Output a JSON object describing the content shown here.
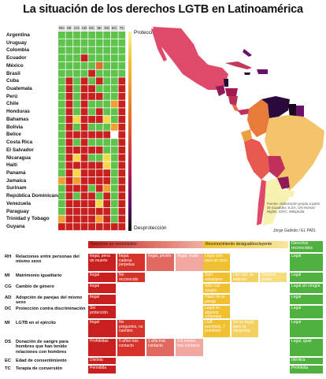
{
  "title": "La situación de los derechos LGTB en Latinoamérica",
  "heatmap": {
    "columns": [
      "RH",
      "MI",
      "CG",
      "AD",
      "DC",
      "MI",
      "DS",
      "EC",
      "TC"
    ],
    "countries": [
      "Argentina",
      "Uruguay",
      "Colombia",
      "Ecuador",
      "México",
      "Brasil",
      "Cuba",
      "Guatemala",
      "Perú",
      "Chile",
      "Honduras",
      "Bahamas",
      "Bolivia",
      "Belice",
      "Costa Rica",
      "El Salvador",
      "Nicaragua",
      "Haití",
      "Panamá",
      "Jamaica",
      "Surinam",
      "República Dominicana",
      "Venezuela",
      "Paraguay",
      "Trinidad y Tobago",
      "Guyana"
    ],
    "scale_top_label": "Protección",
    "scale_bottom_label": "Desprotección"
  },
  "chart_data": {
    "type": "heatmap",
    "title": "La situación de los derechos LGTB en Latinoamérica",
    "x": [
      "RH",
      "MI",
      "CG",
      "AD",
      "DC",
      "MI",
      "DS",
      "EC",
      "TC"
    ],
    "y": [
      "Argentina",
      "Uruguay",
      "Colombia",
      "Ecuador",
      "México",
      "Brasil",
      "Cuba",
      "Guatemala",
      "Perú",
      "Chile",
      "Honduras",
      "Bahamas",
      "Bolivia",
      "Belice",
      "Costa Rica",
      "El Salvador",
      "Nicaragua",
      "Haití",
      "Panamá",
      "Jamaica",
      "Surinam",
      "República Dominicana",
      "Venezuela",
      "Paraguay",
      "Trinidad y Tobago",
      "Guyana"
    ],
    "color_scale": {
      "G": "#5fc24a",
      "Y": "#f8d84a",
      "O": "#f0a030",
      "D": "#e06a30",
      "R": "#c8201e",
      "W": "#ffffff"
    },
    "values": [
      [
        "G",
        "G",
        "G",
        "G",
        "G",
        "G",
        "G",
        "G",
        "G"
      ],
      [
        "G",
        "G",
        "G",
        "G",
        "G",
        "G",
        "G",
        "G",
        "G"
      ],
      [
        "G",
        "G",
        "G",
        "G",
        "G",
        "G",
        "G",
        "G",
        "G"
      ],
      [
        "G",
        "G",
        "G",
        "R",
        "G",
        "G",
        "G",
        "G",
        "G"
      ],
      [
        "G",
        "G",
        "G",
        "G",
        "G",
        "D",
        "G",
        "G",
        "G"
      ],
      [
        "G",
        "G",
        "G",
        "G",
        "R",
        "G",
        "G",
        "G",
        "G"
      ],
      [
        "G",
        "R",
        "G",
        "R",
        "G",
        "R",
        "G",
        "G",
        "R"
      ],
      [
        "G",
        "R",
        "G",
        "R",
        "R",
        "G",
        "G",
        "G",
        "R"
      ],
      [
        "G",
        "R",
        "G",
        "R",
        "R",
        "R",
        "G",
        "G",
        "R"
      ],
      [
        "G",
        "R",
        "G",
        "R",
        "G",
        "G",
        "G",
        "O",
        "R"
      ],
      [
        "G",
        "R",
        "G",
        "R",
        "G",
        "R",
        "G",
        "G",
        "R"
      ],
      [
        "G",
        "R",
        "Y",
        "R",
        "R",
        "R",
        "Y",
        "G",
        "R"
      ],
      [
        "G",
        "R",
        "G",
        "R",
        "G",
        "G",
        "G",
        "O",
        "R"
      ],
      [
        "G",
        "R",
        "R",
        "R",
        "R",
        "R",
        "R",
        "W",
        "R"
      ],
      [
        "G",
        "R",
        "G",
        "R",
        "G",
        "G",
        "G",
        "G",
        "R"
      ],
      [
        "G",
        "R",
        "R",
        "R",
        "R",
        "R",
        "G",
        "G",
        "R"
      ],
      [
        "G",
        "R",
        "Y",
        "R",
        "G",
        "G",
        "Y",
        "G",
        "R"
      ],
      [
        "G",
        "R",
        "R",
        "R",
        "R",
        "R",
        "Y",
        "G",
        "R"
      ],
      [
        "G",
        "R",
        "Y",
        "R",
        "R",
        "R",
        "R",
        "G",
        "R"
      ],
      [
        "O",
        "R",
        "O",
        "R",
        "R",
        "R",
        "R",
        "G",
        "R"
      ],
      [
        "G",
        "R",
        "R",
        "R",
        "G",
        "R",
        "O",
        "G",
        "R"
      ],
      [
        "G",
        "R",
        "G",
        "R",
        "R",
        "G",
        "R",
        "G",
        "R"
      ],
      [
        "G",
        "R",
        "R",
        "R",
        "R",
        "Y",
        "R",
        "G",
        "R"
      ],
      [
        "G",
        "R",
        "R",
        "R",
        "R",
        "R",
        "R",
        "G",
        "R"
      ],
      [
        "O",
        "R",
        "R",
        "R",
        "R",
        "O",
        "R",
        "G",
        "R"
      ],
      [
        "R",
        "R",
        "R",
        "R",
        "R",
        "R",
        "R",
        "R",
        "R"
      ]
    ]
  },
  "map": {
    "note": "Fuente: elaboración propia a partir de Equaldex, ILGA, UN Human Rights, ICRC, Wikipedia.",
    "credit": "Jorge Galindo / EL PAÍS"
  },
  "legend": {
    "headers": {
      "no_reconocidos": "Derechos no reconocidos",
      "desigual": "Reconocimiento desigual/excluyente",
      "reconocidos": "Derechos reconocidos"
    },
    "rows": [
      {
        "code": "RH",
        "label": "Relaciones entre personas del mismo sexo",
        "no": [
          "Ilegal, pena de muerte",
          "Ilegal, cadena perpetua",
          "Ilegal, prisión",
          "Ilegal, multa"
        ],
        "des": [
          "Legal sólo para un sexo"
        ],
        "yes": "Legal"
      },
      {
        "code": "MI",
        "label": "Matrimonio igualitario",
        "no": [
          "Ilegal",
          "No reconocido"
        ],
        "des": [
          "Solo extranjero",
          "Otro tipo de relación",
          "Uniones civiles"
        ],
        "yes": "Legal"
      },
      {
        "code": "CG",
        "label": "Cambio de género",
        "no": [
          "Ilegal"
        ],
        "des": [
          "Sólo con cirugía"
        ],
        "yes": "Legal sin cirugía"
      },
      {
        "code": "AD",
        "label": "Adopción de parejas del mismo sexo",
        "no": [
          "Ilegal"
        ],
        "des": [
          "Hija/o de la pareja"
        ],
        "yes": "Legal"
      },
      {
        "code": "DC",
        "label": "Protección contra discriminación",
        "no": [
          "Sin protección"
        ],
        "des": [
          "Legal en algunos contextos"
        ],
        "yes": "Legal"
      },
      {
        "code": "MI",
        "label": "LGTB en el ejército",
        "no": [
          "Ilegal",
          "No preguntes, no cuentes"
        ],
        "des": [
          "LGB permitido, T prohibido",
          "No es ilegal, pero se desanima"
        ],
        "yes": "Legal"
      },
      {
        "code": "DS",
        "label": "Donación de sangre para hombres que han tenido relaciones con hombres",
        "no": [
          "Prohibidas",
          "5 años tras contacto",
          "1 año tras contacto",
          "3-6 meses tras contacto"
        ],
        "des": [],
        "yes": "Legal, igual"
      },
      {
        "code": "EC",
        "label": "Edad de consentimiento",
        "no": [
          "Distinta"
        ],
        "des": [],
        "yes": "Idéntica"
      },
      {
        "code": "TC",
        "label": "Terapia de conversión",
        "no": [
          "Permitida"
        ],
        "des": [],
        "yes": "Prohibida"
      }
    ]
  }
}
